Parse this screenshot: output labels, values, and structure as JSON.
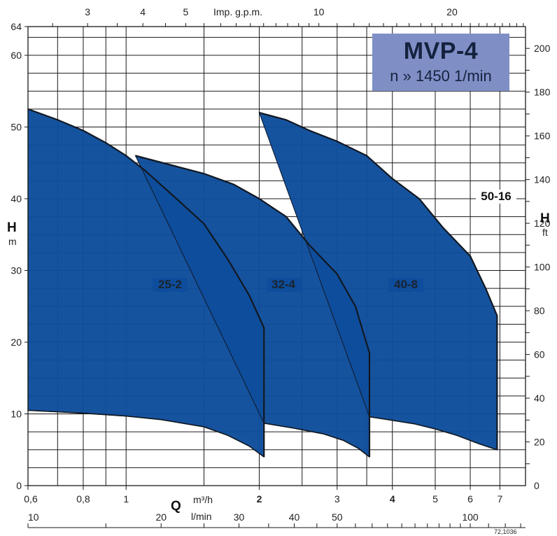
{
  "chart_data": {
    "type": "area",
    "title": "MVP-4",
    "subtitle": "n » 1450 1/min",
    "left_axis": {
      "label": "H",
      "unit": "m",
      "range": [
        0,
        64
      ],
      "ticks": [
        0,
        10,
        20,
        30,
        40,
        50,
        60,
        64
      ]
    },
    "right_axis": {
      "label": "H",
      "unit": "ft",
      "range": [
        0,
        210
      ],
      "ticks": [
        0,
        20,
        40,
        60,
        80,
        100,
        120,
        140,
        160,
        180,
        200
      ]
    },
    "bottom_axis_1": {
      "label": "Q",
      "unit": "m³/h",
      "scale": "log",
      "range": [
        0.6,
        8
      ],
      "ticks": [
        "0,6",
        "0,8",
        "1",
        "2",
        "3",
        "4",
        "5",
        "6",
        "7"
      ]
    },
    "bottom_axis_2": {
      "unit": "l/min",
      "scale": "log",
      "ticks": [
        "10",
        "20",
        "30",
        "40",
        "50",
        "100"
      ]
    },
    "top_axis": {
      "label": "Imp. g.p.m.",
      "scale": "log",
      "ticks": [
        "3",
        "4",
        "5",
        "10",
        "20"
      ]
    },
    "grid": true,
    "series": [
      {
        "name": "25-2",
        "upper": [
          [
            0.6,
            52.5
          ],
          [
            0.7,
            51.0
          ],
          [
            0.8,
            49.5
          ],
          [
            0.9,
            47.8
          ],
          [
            1.0,
            46.0
          ],
          [
            1.1,
            44.0
          ],
          [
            1.3,
            40.0
          ],
          [
            1.5,
            36.5
          ],
          [
            1.7,
            31.5
          ],
          [
            1.9,
            26.5
          ],
          [
            2.05,
            22.0
          ]
        ],
        "lower": [
          [
            0.6,
            10.5
          ],
          [
            0.8,
            10.1
          ],
          [
            1.0,
            9.7
          ],
          [
            1.2,
            9.2
          ],
          [
            1.5,
            8.2
          ],
          [
            1.7,
            7.0
          ],
          [
            1.9,
            5.5
          ],
          [
            2.05,
            4.0
          ]
        ]
      },
      {
        "name": "32-4",
        "upper": [
          [
            1.05,
            46.0
          ],
          [
            1.3,
            44.5
          ],
          [
            1.5,
            43.5
          ],
          [
            1.75,
            42.0
          ],
          [
            2.0,
            40.0
          ],
          [
            2.3,
            37.5
          ],
          [
            2.6,
            33.5
          ],
          [
            3.0,
            29.5
          ],
          [
            3.3,
            25.0
          ],
          [
            3.55,
            18.5
          ]
        ],
        "lower": [
          [
            2.05,
            8.7
          ],
          [
            2.4,
            8.0
          ],
          [
            2.8,
            7.2
          ],
          [
            3.1,
            6.3
          ],
          [
            3.35,
            5.2
          ],
          [
            3.55,
            4.0
          ]
        ]
      },
      {
        "name": "40-8",
        "upper": [
          [
            2.0,
            52.0
          ],
          [
            2.3,
            51.0
          ],
          [
            2.6,
            49.5
          ],
          [
            3.0,
            48.0
          ],
          [
            3.5,
            46.0
          ],
          [
            4.0,
            42.8
          ],
          [
            4.6,
            40.0
          ],
          [
            5.2,
            36.0
          ],
          [
            6.0,
            32.0
          ],
          [
            6.5,
            27.5
          ],
          [
            6.9,
            23.7
          ]
        ],
        "lower": [
          [
            3.55,
            9.6
          ],
          [
            4.0,
            9.1
          ],
          [
            4.5,
            8.6
          ],
          [
            5.0,
            7.9
          ],
          [
            5.6,
            7.0
          ],
          [
            6.3,
            5.8
          ],
          [
            6.9,
            5.0
          ]
        ]
      },
      {
        "name": "50-16"
      }
    ],
    "annotations": {
      "code": "72,1036",
      "ref_label": "50-16"
    }
  },
  "labels": {
    "top_axis_label": "Imp. g.p.m.",
    "q_label": "Q",
    "q_unit_m3h": "m³/h",
    "q_unit_lmin": "l/min",
    "left_h": "H",
    "left_unit": "m",
    "right_h": "H",
    "right_unit": "ft",
    "figure_code": "72,1036",
    "curve_25_2": "25-2",
    "curve_32_4": "32-4",
    "curve_40_8": "40-8",
    "curve_50_16": "50-16"
  },
  "colors": {
    "fill": "#0e4d9c",
    "grid": "#1a1a1a",
    "title_box": "#7f8fc6",
    "title_text": "#15223f"
  }
}
